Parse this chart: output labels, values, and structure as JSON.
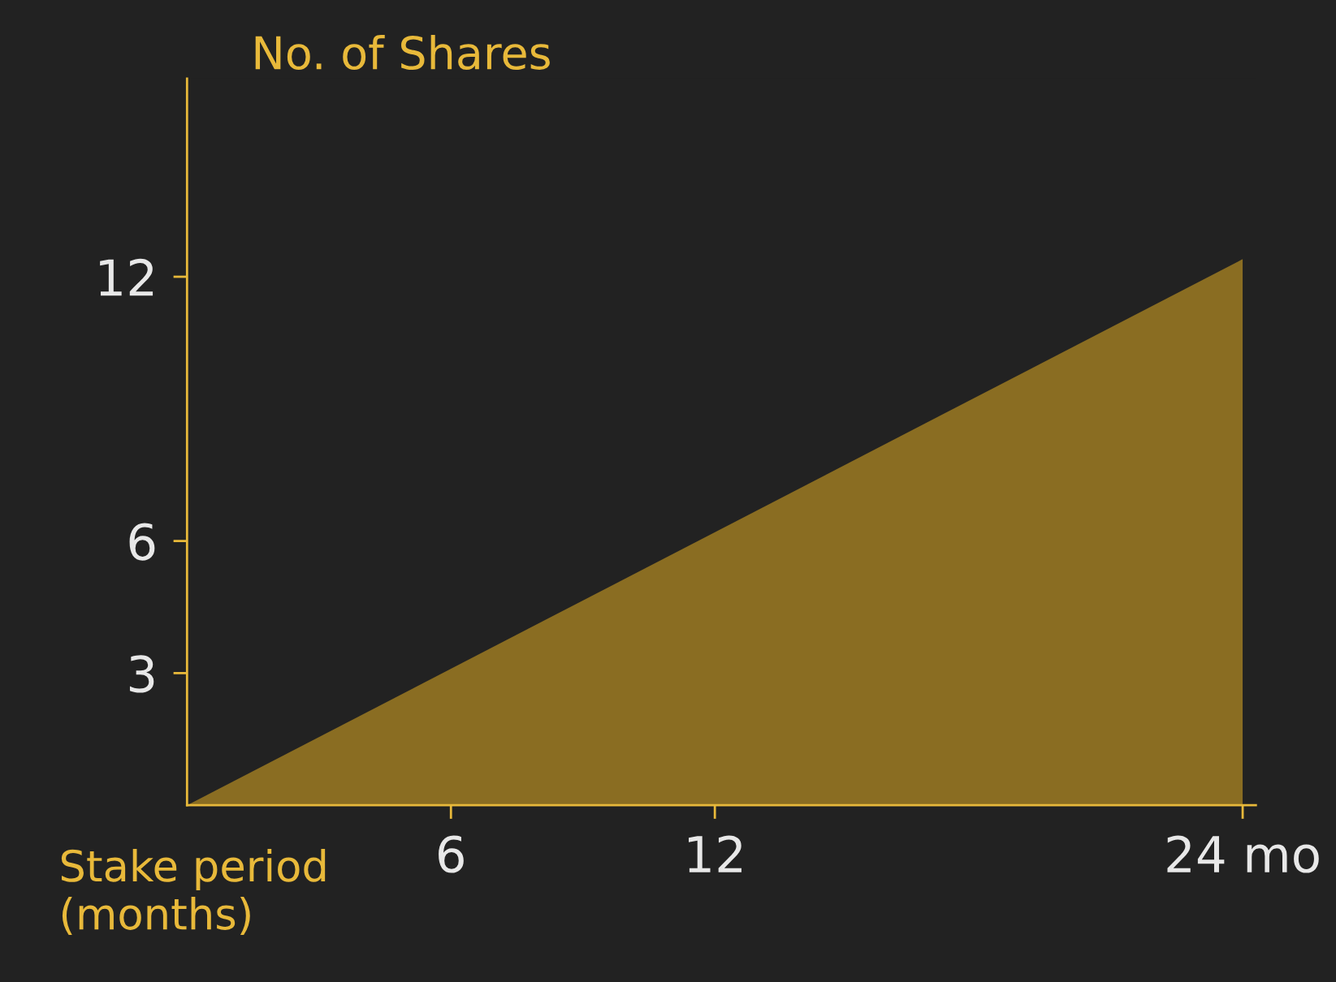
{
  "chart_data": {
    "type": "area",
    "ylabel": "No. of Shares",
    "xlabel": "Stake period\n(months)",
    "x": [
      0,
      24
    ],
    "series": [
      {
        "color": "#8a6d22",
        "values": [
          0,
          12.4
        ]
      }
    ],
    "xlim": [
      0,
      24.3
    ],
    "ylim": [
      0,
      16.5
    ],
    "xticks": [
      6,
      12,
      {
        "value": 24,
        "label": "24 mo"
      }
    ],
    "yticks": [
      3,
      6,
      12
    ],
    "grid": false,
    "legend": false
  }
}
